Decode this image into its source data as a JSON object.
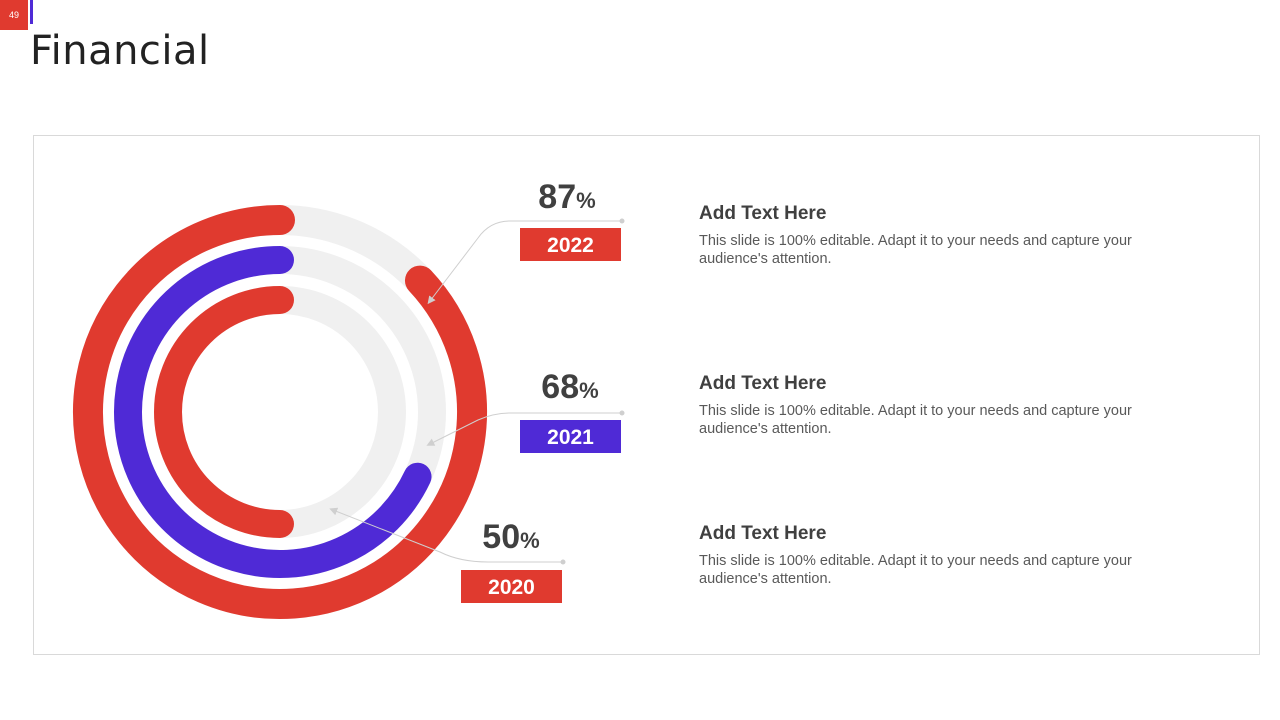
{
  "page_number": "49",
  "title": "Financial",
  "colors": {
    "red": "#e03a2f",
    "purple": "#4f2ad6",
    "track": "#f0f0f0",
    "connector": "#cfcfcf"
  },
  "chart_data": {
    "type": "radial-bar",
    "title": "Financial",
    "max": 100,
    "series": [
      {
        "name": "2022",
        "value": 87,
        "label": "87",
        "unit": "%",
        "color": "#e03a2f"
      },
      {
        "name": "2021",
        "value": 68,
        "label": "68",
        "unit": "%",
        "color": "#4f2ad6"
      },
      {
        "name": "2020",
        "value": 50,
        "label": "50",
        "unit": "%",
        "color": "#e03a2f"
      }
    ]
  },
  "items": [
    {
      "heading": "Add Text Here",
      "body": "This slide is 100% editable. Adapt it to your needs and capture your audience's attention."
    },
    {
      "heading": "Add Text Here",
      "body": "This slide is 100% editable. Adapt it to your needs and capture your audience's attention."
    },
    {
      "heading": "Add Text Here",
      "body": "This slide is 100% editable. Adapt it to your needs and capture your audience's attention."
    }
  ]
}
